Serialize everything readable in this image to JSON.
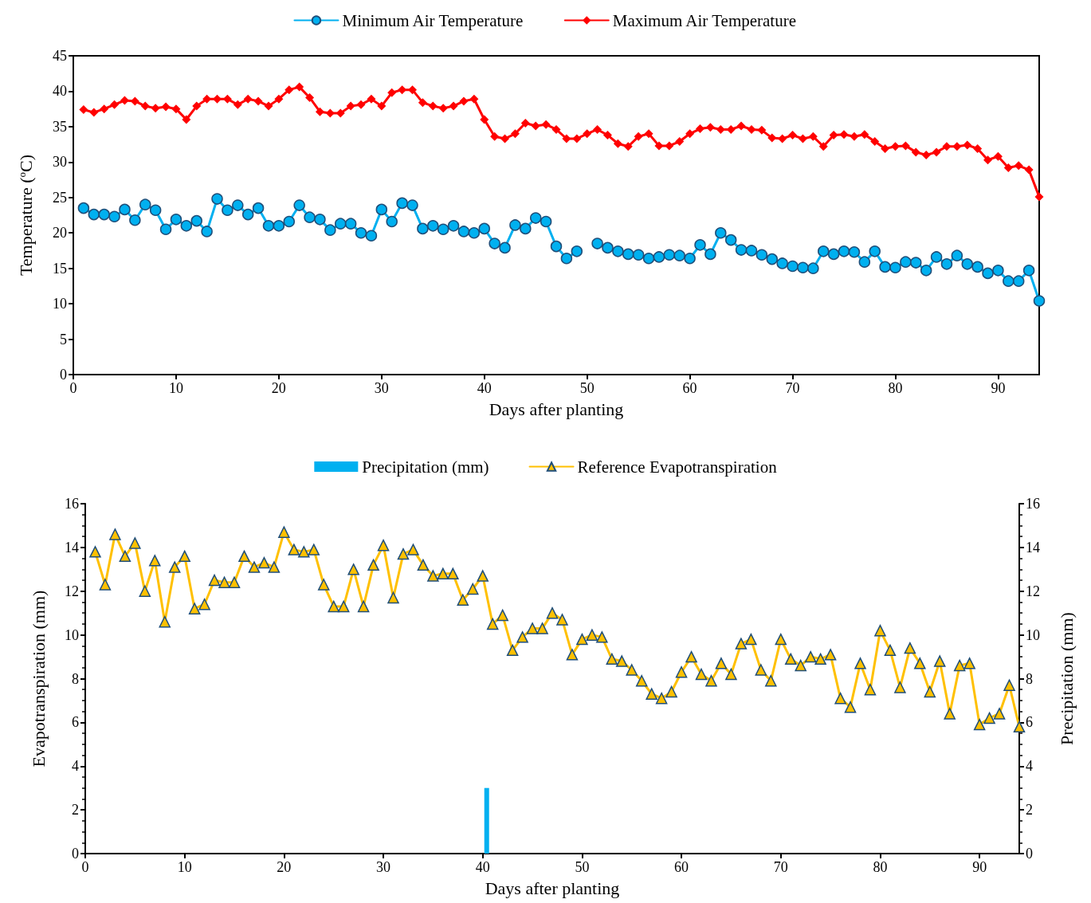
{
  "chart_data": [
    {
      "type": "line",
      "xlabel": "Days after planting",
      "ylabel": "Temperature ($^{o}$C)",
      "xlim": [
        0,
        94
      ],
      "xticks": [
        0,
        10,
        20,
        30,
        40,
        50,
        60,
        70,
        80,
        90
      ],
      "ylim": [
        0,
        45
      ],
      "yticks": [
        0,
        5,
        10,
        15,
        20,
        25,
        30,
        35,
        40,
        45
      ],
      "grid": false,
      "legend": "top",
      "x": [
        1,
        2,
        3,
        4,
        5,
        6,
        7,
        8,
        9,
        10,
        11,
        12,
        13,
        14,
        15,
        16,
        17,
        18,
        19,
        20,
        21,
        22,
        23,
        24,
        25,
        26,
        27,
        28,
        29,
        30,
        31,
        32,
        33,
        34,
        35,
        36,
        37,
        38,
        39,
        40,
        41,
        42,
        43,
        44,
        45,
        46,
        47,
        48,
        49,
        50,
        51,
        52,
        53,
        54,
        55,
        56,
        57,
        58,
        59,
        60,
        61,
        62,
        63,
        64,
        65,
        66,
        67,
        68,
        69,
        70,
        71,
        72,
        73,
        74,
        75,
        76,
        77,
        78,
        79,
        80,
        81,
        82,
        83,
        84,
        85,
        86,
        87,
        88,
        89,
        90,
        91,
        92,
        93,
        94
      ],
      "series": [
        {
          "name": "Minimum Air Temperature",
          "color": "#00b0f0",
          "marker": "circle",
          "values": [
            23.5,
            22.6,
            22.6,
            22.3,
            23.3,
            21.8,
            24.0,
            23.2,
            20.5,
            21.9,
            21.0,
            21.7,
            20.2,
            24.8,
            23.2,
            23.9,
            22.6,
            23.5,
            21.0,
            21.0,
            21.6,
            23.9,
            22.2,
            21.9,
            20.4,
            21.3,
            21.3,
            20.0,
            19.6,
            23.3,
            21.6,
            24.2,
            23.9,
            20.6,
            21.0,
            20.5,
            21.0,
            20.2,
            20.0,
            20.6,
            18.5,
            17.9,
            21.1,
            20.6,
            22.1,
            21.6,
            18.1,
            16.4,
            17.4,
            null,
            18.5,
            17.9,
            17.4,
            17.0,
            16.9,
            16.4,
            16.6,
            16.9,
            16.8,
            16.4,
            18.3,
            17.0,
            20.0,
            19.0,
            17.6,
            17.5,
            16.9,
            16.3,
            15.7,
            15.3,
            15.1,
            15.0,
            17.4,
            17.0,
            17.4,
            17.3,
            15.9,
            17.4,
            15.2,
            15.1,
            15.9,
            15.8,
            14.7,
            16.6,
            15.6,
            16.8,
            15.6,
            15.2,
            14.3,
            14.7,
            13.2,
            13.2,
            14.7,
            10.4
          ]
        },
        {
          "name": "Maximum Air Temperature",
          "color": "#ff0000",
          "marker": "diamond",
          "values": [
            37.4,
            37.0,
            37.5,
            38.1,
            38.7,
            38.6,
            37.9,
            37.6,
            37.8,
            37.5,
            36.0,
            37.9,
            38.9,
            38.9,
            38.9,
            38.1,
            38.9,
            38.6,
            37.9,
            38.9,
            40.2,
            40.6,
            39.1,
            37.1,
            36.9,
            36.9,
            37.9,
            38.1,
            38.9,
            37.9,
            39.8,
            40.2,
            40.2,
            38.4,
            37.9,
            37.6,
            37.9,
            38.6,
            38.9,
            36.0,
            33.6,
            33.3,
            34.0,
            35.5,
            35.1,
            35.3,
            34.6,
            33.3,
            33.3,
            34.0,
            34.6,
            33.8,
            32.6,
            32.2,
            33.6,
            34.0,
            32.3,
            32.3,
            32.9,
            34.0,
            34.7,
            34.9,
            34.6,
            34.6,
            35.1,
            34.6,
            34.5,
            33.4,
            33.3,
            33.8,
            33.3,
            33.6,
            32.2,
            33.8,
            33.9,
            33.6,
            33.9,
            32.9,
            31.9,
            32.2,
            32.3,
            31.4,
            31.0,
            31.4,
            32.2,
            32.2,
            32.4,
            31.9,
            30.3,
            30.8,
            29.2,
            29.5,
            28.9,
            25.1
          ]
        }
      ]
    },
    {
      "type": "line",
      "xlabel": "Days after planting",
      "ylabel": "Evapotranspiration (mm)",
      "y2label": "Precipitation (mm)",
      "xlim": [
        0,
        94
      ],
      "xticks": [
        0,
        10,
        20,
        30,
        40,
        50,
        60,
        70,
        80,
        90
      ],
      "ylim": [
        0,
        16
      ],
      "yticks": [
        0,
        2,
        4,
        6,
        8,
        10,
        12,
        14,
        16
      ],
      "y2lim": [
        0,
        16
      ],
      "y2ticks": [
        0,
        2,
        4,
        6,
        8,
        10,
        12,
        14,
        16
      ],
      "grid": false,
      "legend": "top",
      "x": [
        1,
        2,
        3,
        4,
        5,
        6,
        7,
        8,
        9,
        10,
        11,
        12,
        13,
        14,
        15,
        16,
        17,
        18,
        19,
        20,
        21,
        22,
        23,
        24,
        25,
        26,
        27,
        28,
        29,
        30,
        31,
        32,
        33,
        34,
        35,
        36,
        37,
        38,
        39,
        40,
        41,
        42,
        43,
        44,
        45,
        46,
        47,
        48,
        49,
        50,
        51,
        52,
        53,
        54,
        55,
        56,
        57,
        58,
        59,
        60,
        61,
        62,
        63,
        64,
        65,
        66,
        67,
        68,
        69,
        70,
        71,
        72,
        73,
        74,
        75,
        76,
        77,
        78,
        79,
        80,
        81,
        82,
        83,
        84,
        85,
        86,
        87,
        88,
        89,
        90,
        91,
        92,
        93,
        94
      ],
      "series": [
        {
          "name": "Precipitation (mm)",
          "type": "bar",
          "axis": "y2",
          "color": "#00b0f0",
          "x": [
            40.4
          ],
          "values": [
            3
          ]
        },
        {
          "name": "Reference Evapotranspiration",
          "color": "#ffc000",
          "marker": "triangle",
          "values": [
            13.8,
            12.3,
            14.6,
            13.6,
            14.2,
            12.0,
            13.4,
            10.6,
            13.1,
            13.6,
            11.2,
            11.4,
            12.5,
            12.4,
            12.4,
            13.6,
            13.1,
            13.3,
            13.1,
            14.7,
            13.9,
            13.8,
            13.9,
            12.3,
            11.3,
            11.3,
            13.0,
            11.3,
            13.2,
            14.1,
            11.7,
            13.7,
            13.9,
            13.2,
            12.7,
            12.8,
            12.8,
            11.6,
            12.1,
            12.7,
            10.5,
            10.9,
            9.3,
            9.9,
            10.3,
            10.3,
            11.0,
            10.7,
            9.1,
            9.8,
            10.0,
            9.9,
            8.9,
            8.8,
            8.4,
            7.9,
            7.3,
            7.1,
            7.4,
            8.3,
            9.0,
            8.2,
            7.9,
            8.7,
            8.2,
            9.6,
            9.8,
            8.4,
            7.9,
            9.8,
            8.9,
            8.6,
            9.0,
            8.9,
            9.1,
            7.1,
            6.7,
            8.7,
            7.5,
            10.2,
            9.3,
            7.6,
            9.4,
            8.7,
            7.4,
            8.8,
            6.4,
            8.6,
            8.7,
            5.9,
            6.2,
            6.4,
            7.7,
            5.8
          ]
        }
      ]
    }
  ]
}
